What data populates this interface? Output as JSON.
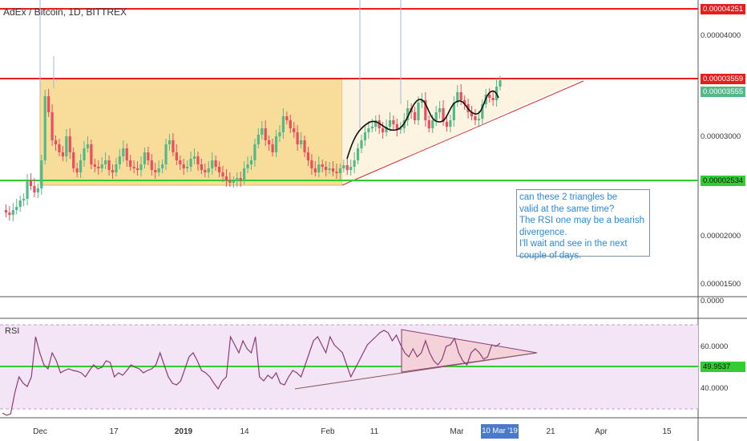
{
  "header": {
    "title": "AdEx / Bitcoin, 1D, BITTREX"
  },
  "rsi": {
    "label": "RSI"
  },
  "annotation": {
    "lines": [
      "can these 2 triangles be",
      "valid at the same time?",
      "The RSI one may be a bearish",
      "divergence.",
      "I'll wait and see in the next",
      "couple of days."
    ]
  },
  "price_axis": {
    "labels": [
      "0.00004000",
      "0.00003000",
      "0.00002000",
      "0.00001500"
    ],
    "tags": {
      "top_resistance": "0.00004251",
      "mid_resistance": "0.00003559",
      "last_price": "0.00003555",
      "support": "0.00002534"
    }
  },
  "rsi_axis": {
    "top": "0.0000",
    "labels": [
      "60.0000",
      "40.0000"
    ],
    "tag": "49.9537"
  },
  "time_axis": {
    "labels": [
      "Dec",
      "17",
      "2019",
      "14",
      "Feb",
      "11",
      "Mar",
      "21",
      "Apr",
      "15"
    ],
    "highlight": "10 Mar '19"
  },
  "colors": {
    "up": "#53b987",
    "down": "#eb4d5c",
    "resistance": "#e81e1e",
    "support": "#33cc33",
    "range_box": "#f7dc9a",
    "rsi_line": "#8a3b73",
    "rsi_band": "#f3e5f5",
    "label_blue": "#4a7bc9"
  },
  "chart_data": {
    "type": "candlestick",
    "symbol": "AdEx / Bitcoin",
    "interval": "1D",
    "exchange": "BITTREX",
    "horizontal_levels": [
      4.251e-05,
      3.559e-05,
      2.534e-05
    ],
    "last_price": 3.555e-05,
    "rsi_last": 49.9537,
    "rsi_levels": [
      60,
      40
    ]
  }
}
